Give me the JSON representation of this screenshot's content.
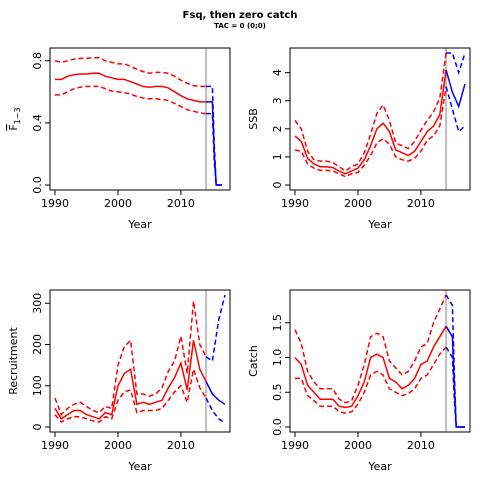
{
  "title": "Fsq, then zero catch",
  "subtitle": "TAC = 0 (0;0)",
  "colors": {
    "history": "#ff0000",
    "projection": "#0000ff",
    "divider": "#bebebe"
  },
  "chart_data": [
    {
      "type": "line",
      "id": "fbar",
      "xlabel": "Year",
      "ylabel_main": "F",
      "ylabel_sub": "1−3",
      "xlim": [
        1990,
        2017
      ],
      "ylim": [
        0,
        0.85
      ],
      "xticks": [
        1990,
        2000,
        2010
      ],
      "yticks": [
        0.0,
        0.4,
        0.8
      ],
      "yticklabels": [
        "0.0",
        "0.4",
        "0.8"
      ],
      "divider_year": 2014,
      "history": {
        "x": [
          1990,
          1991,
          1992,
          1993,
          1994,
          1995,
          1996,
          1997,
          1998,
          1999,
          2000,
          2001,
          2002,
          2003,
          2004,
          2005,
          2006,
          2007,
          2008,
          2009,
          2010,
          2011,
          2012,
          2013,
          2014
        ],
        "median": [
          0.68,
          0.68,
          0.7,
          0.71,
          0.715,
          0.715,
          0.72,
          0.72,
          0.7,
          0.69,
          0.68,
          0.68,
          0.665,
          0.65,
          0.635,
          0.63,
          0.635,
          0.635,
          0.625,
          0.6,
          0.575,
          0.555,
          0.545,
          0.535,
          0.535
        ],
        "upper": [
          0.8,
          0.79,
          0.8,
          0.81,
          0.815,
          0.815,
          0.82,
          0.82,
          0.8,
          0.79,
          0.78,
          0.78,
          0.765,
          0.745,
          0.73,
          0.72,
          0.725,
          0.725,
          0.72,
          0.7,
          0.675,
          0.655,
          0.64,
          0.635,
          0.635
        ],
        "lower": [
          0.58,
          0.58,
          0.6,
          0.62,
          0.63,
          0.635,
          0.635,
          0.635,
          0.62,
          0.605,
          0.6,
          0.595,
          0.585,
          0.57,
          0.56,
          0.555,
          0.555,
          0.55,
          0.545,
          0.525,
          0.505,
          0.485,
          0.475,
          0.465,
          0.46
        ]
      },
      "projection": {
        "x": [
          2014,
          2015,
          2015.3,
          2015.6,
          2016,
          2016.5
        ],
        "median": [
          0.535,
          0.535,
          0.2,
          0.0,
          0.0,
          0.0
        ],
        "upper": [
          0.635,
          0.635,
          0.25,
          0.0,
          0.0,
          0.0
        ],
        "lower": [
          0.46,
          0.46,
          0.15,
          0.0,
          0.0,
          0.0
        ]
      }
    },
    {
      "type": "line",
      "id": "ssb",
      "xlabel": "Year",
      "ylabel_main": "SSB",
      "xlim": [
        1990,
        2017
      ],
      "ylim": [
        0,
        4.7
      ],
      "xticks": [
        1990,
        2000,
        2010
      ],
      "yticks": [
        0,
        1,
        2,
        3,
        4
      ],
      "yticklabels": [
        "0",
        "1",
        "2",
        "3",
        "4"
      ],
      "divider_year": 2014,
      "history": {
        "x": [
          1990,
          1991,
          1992,
          1993,
          1994,
          1995,
          1996,
          1997,
          1998,
          1999,
          2000,
          2001,
          2002,
          2003,
          2004,
          2005,
          2006,
          2007,
          2008,
          2009,
          2010,
          2011,
          2012,
          2013,
          2014
        ],
        "median": [
          1.75,
          1.55,
          0.95,
          0.75,
          0.65,
          0.65,
          0.62,
          0.5,
          0.4,
          0.5,
          0.6,
          0.9,
          1.4,
          2.0,
          2.2,
          1.9,
          1.25,
          1.15,
          1.05,
          1.2,
          1.55,
          1.9,
          2.1,
          2.5,
          4.1
        ],
        "upper": [
          2.3,
          2.0,
          1.2,
          0.9,
          0.85,
          0.85,
          0.8,
          0.65,
          0.5,
          0.65,
          0.75,
          1.15,
          1.8,
          2.55,
          2.85,
          2.3,
          1.5,
          1.4,
          1.3,
          1.55,
          1.95,
          2.3,
          2.6,
          3.1,
          4.7
        ],
        "lower": [
          1.25,
          1.2,
          0.75,
          0.6,
          0.52,
          0.52,
          0.5,
          0.4,
          0.3,
          0.4,
          0.45,
          0.7,
          1.05,
          1.5,
          1.65,
          1.45,
          1.0,
          0.9,
          0.85,
          0.95,
          1.2,
          1.6,
          1.75,
          2.1,
          3.5
        ]
      },
      "projection": {
        "x": [
          2014,
          2015,
          2016,
          2017
        ],
        "median": [
          4.1,
          3.3,
          2.8,
          3.6
        ],
        "upper": [
          4.7,
          4.7,
          4.0,
          4.7
        ],
        "lower": [
          3.5,
          2.7,
          1.9,
          2.1
        ]
      }
    },
    {
      "type": "line",
      "id": "recruitment",
      "xlabel": "Year",
      "ylabel_main": "Recruitment",
      "xlim": [
        1990,
        2017
      ],
      "ylim": [
        0,
        320
      ],
      "xticks": [
        1990,
        2000,
        2010
      ],
      "yticks": [
        0,
        100,
        200,
        300
      ],
      "yticklabels": [
        "0",
        "100",
        "200",
        "300"
      ],
      "divider_year": 2014,
      "history": {
        "x": [
          1990,
          1991,
          1992,
          1993,
          1994,
          1995,
          1996,
          1997,
          1998,
          1999,
          2000,
          2001,
          2002,
          2003,
          2004,
          2005,
          2006,
          2007,
          2008,
          2009,
          2010,
          2011,
          2012,
          2013,
          2014
        ],
        "median": [
          45,
          20,
          30,
          40,
          40,
          30,
          25,
          20,
          35,
          30,
          100,
          130,
          140,
          55,
          60,
          55,
          60,
          65,
          95,
          120,
          155,
          90,
          210,
          140,
          110
        ],
        "upper": [
          70,
          30,
          45,
          55,
          60,
          50,
          40,
          35,
          50,
          45,
          150,
          195,
          210,
          80,
          80,
          75,
          80,
          95,
          135,
          160,
          220,
          130,
          305,
          200,
          170
        ],
        "lower": [
          30,
          12,
          20,
          25,
          25,
          20,
          15,
          12,
          25,
          20,
          65,
          85,
          90,
          35,
          40,
          40,
          40,
          45,
          65,
          85,
          100,
          60,
          140,
          95,
          70
        ]
      },
      "projection": {
        "x": [
          2014,
          2015,
          2016,
          2017
        ],
        "median": [
          110,
          80,
          65,
          55
        ],
        "upper": [
          170,
          160,
          260,
          320
        ],
        "lower": [
          70,
          40,
          20,
          10
        ]
      }
    },
    {
      "type": "line",
      "id": "catch",
      "xlabel": "Year",
      "ylabel_main": "Catch",
      "xlim": [
        1990,
        2017
      ],
      "ylim": [
        0,
        1.9
      ],
      "xticks": [
        1990,
        2000,
        2010
      ],
      "yticks": [
        0.0,
        0.5,
        1.0,
        1.5
      ],
      "yticklabels": [
        "0.0",
        "0.5",
        "1.0",
        "1.5"
      ],
      "divider_year": 2014,
      "history": {
        "x": [
          1990,
          1991,
          1992,
          1993,
          1994,
          1995,
          1996,
          1997,
          1998,
          1999,
          2000,
          2001,
          2002,
          2003,
          2004,
          2005,
          2006,
          2007,
          2008,
          2009,
          2010,
          2011,
          2012,
          2013,
          2014
        ],
        "median": [
          1.0,
          0.9,
          0.6,
          0.5,
          0.4,
          0.4,
          0.4,
          0.3,
          0.28,
          0.3,
          0.45,
          0.65,
          1.0,
          1.05,
          1.0,
          0.7,
          0.65,
          0.55,
          0.6,
          0.7,
          0.9,
          0.95,
          1.15,
          1.3,
          1.45
        ],
        "upper": [
          1.4,
          1.2,
          0.8,
          0.65,
          0.55,
          0.55,
          0.55,
          0.4,
          0.35,
          0.38,
          0.6,
          0.9,
          1.3,
          1.35,
          1.3,
          0.95,
          0.85,
          0.75,
          0.8,
          0.95,
          1.15,
          1.2,
          1.5,
          1.7,
          1.9
        ],
        "lower": [
          0.7,
          0.7,
          0.45,
          0.38,
          0.3,
          0.3,
          0.3,
          0.22,
          0.2,
          0.22,
          0.33,
          0.5,
          0.75,
          0.8,
          0.75,
          0.55,
          0.5,
          0.45,
          0.48,
          0.55,
          0.7,
          0.75,
          0.9,
          1.05,
          1.15
        ]
      },
      "projection": {
        "x": [
          2014,
          2015,
          2015.3,
          2015.6,
          2016,
          2017
        ],
        "median": [
          1.45,
          1.3,
          0.6,
          0.0,
          0.0,
          0.0
        ],
        "upper": [
          1.9,
          1.75,
          0.8,
          0.0,
          0.0,
          0.0
        ],
        "lower": [
          1.15,
          1.0,
          0.4,
          0.0,
          0.0,
          0.0
        ]
      }
    }
  ]
}
